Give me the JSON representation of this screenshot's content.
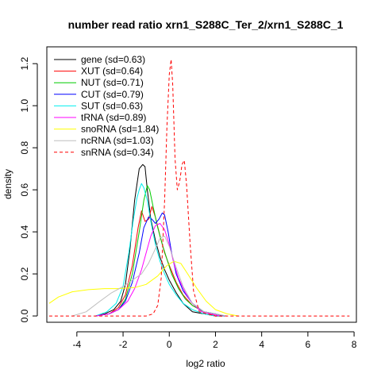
{
  "chart_data": {
    "type": "line",
    "title": "number read ratio xrn1_S288C_Ter_2/xrn1_S288C_1",
    "xlabel": "log2 ratio",
    "ylabel": "density",
    "xlim": [
      -5.3,
      8.1
    ],
    "ylim": [
      -0.03,
      1.28
    ],
    "x_ticks": [
      -4,
      -2,
      0,
      2,
      4,
      6,
      8
    ],
    "x_tick_labels": [
      "-4",
      "-2",
      "0",
      "2",
      "4",
      "6",
      "8"
    ],
    "y_ticks": [
      0.0,
      0.2,
      0.4,
      0.6,
      0.8,
      1.0,
      1.2
    ],
    "y_tick_labels": [
      "0.0",
      "0.2",
      "0.4",
      "0.6",
      "0.8",
      "1.0",
      "1.2"
    ],
    "grid": false,
    "legend_position": "top-left",
    "series": [
      {
        "name": "gene (sd=0.63)",
        "color": "#000000",
        "dashed": false,
        "x": [
          -3.2,
          -2.8,
          -2.4,
          -2.1,
          -1.9,
          -1.7,
          -1.5,
          -1.3,
          -1.15,
          -1.05,
          -0.95,
          -0.8,
          -0.6,
          -0.4,
          -0.2,
          0.0,
          0.3,
          0.6,
          1.0,
          1.5,
          2.0,
          2.3
        ],
        "y": [
          0.0,
          0.01,
          0.03,
          0.07,
          0.15,
          0.32,
          0.55,
          0.7,
          0.72,
          0.71,
          0.6,
          0.46,
          0.36,
          0.28,
          0.22,
          0.17,
          0.11,
          0.06,
          0.02,
          0.01,
          0.0,
          0.0
        ]
      },
      {
        "name": "XUT (sd=0.64)",
        "color": "#ff0000",
        "dashed": false,
        "x": [
          -3.2,
          -2.6,
          -2.2,
          -1.9,
          -1.6,
          -1.35,
          -1.2,
          -1.05,
          -0.9,
          -0.75,
          -0.6,
          -0.4,
          -0.2,
          0.0,
          0.3,
          0.6,
          1.0,
          1.5,
          2.0,
          2.3
        ],
        "y": [
          0.0,
          0.01,
          0.04,
          0.1,
          0.24,
          0.42,
          0.5,
          0.45,
          0.46,
          0.52,
          0.47,
          0.38,
          0.3,
          0.24,
          0.16,
          0.1,
          0.05,
          0.02,
          0.0,
          0.0
        ]
      },
      {
        "name": "NUT (sd=0.71)",
        "color": "#00cc00",
        "dashed": false,
        "x": [
          -3.2,
          -2.6,
          -2.2,
          -1.9,
          -1.6,
          -1.3,
          -1.1,
          -0.95,
          -0.85,
          -0.7,
          -0.5,
          -0.3,
          -0.1,
          0.1,
          0.4,
          0.7,
          1.0,
          1.5,
          2.0,
          2.4
        ],
        "y": [
          0.0,
          0.01,
          0.03,
          0.08,
          0.2,
          0.4,
          0.55,
          0.62,
          0.6,
          0.52,
          0.42,
          0.34,
          0.27,
          0.2,
          0.13,
          0.08,
          0.05,
          0.02,
          0.01,
          0.0
        ]
      },
      {
        "name": "CUT (sd=0.79)",
        "color": "#0000ff",
        "dashed": false,
        "x": [
          -3.2,
          -2.6,
          -2.2,
          -1.9,
          -1.6,
          -1.3,
          -1.1,
          -0.9,
          -0.75,
          -0.6,
          -0.45,
          -0.3,
          -0.2,
          -0.05,
          0.1,
          0.3,
          0.6,
          1.0,
          1.5,
          2.0,
          2.4
        ],
        "y": [
          0.0,
          0.01,
          0.03,
          0.07,
          0.16,
          0.3,
          0.42,
          0.47,
          0.46,
          0.44,
          0.46,
          0.49,
          0.48,
          0.4,
          0.3,
          0.2,
          0.12,
          0.06,
          0.02,
          0.01,
          0.0
        ]
      },
      {
        "name": "SUT (sd=0.63)",
        "color": "#00eeee",
        "dashed": false,
        "x": [
          -3.2,
          -2.7,
          -2.3,
          -2.0,
          -1.75,
          -1.55,
          -1.4,
          -1.3,
          -1.2,
          -1.1,
          -0.95,
          -0.8,
          -0.6,
          -0.4,
          -0.2,
          0.0,
          0.3,
          0.6,
          1.0,
          1.5,
          2.0,
          2.3
        ],
        "y": [
          0.0,
          0.02,
          0.06,
          0.14,
          0.3,
          0.46,
          0.56,
          0.6,
          0.63,
          0.61,
          0.55,
          0.45,
          0.34,
          0.26,
          0.2,
          0.15,
          0.1,
          0.06,
          0.03,
          0.01,
          0.0,
          0.0
        ]
      },
      {
        "name": "tRNA (sd=0.89)",
        "color": "#ff00ff",
        "dashed": false,
        "x": [
          -3.2,
          -2.6,
          -2.2,
          -1.8,
          -1.5,
          -1.2,
          -1.0,
          -0.8,
          -0.6,
          -0.4,
          -0.2,
          0.0,
          0.2,
          0.4,
          0.7,
          1.0,
          1.4,
          1.8,
          2.2
        ],
        "y": [
          0.0,
          0.01,
          0.03,
          0.07,
          0.13,
          0.22,
          0.3,
          0.38,
          0.43,
          0.44,
          0.41,
          0.34,
          0.25,
          0.18,
          0.11,
          0.06,
          0.02,
          0.01,
          0.0
        ]
      },
      {
        "name": "snoRNA (sd=1.84)",
        "color": "#ffff00",
        "dashed": false,
        "x": [
          -5.2,
          -4.8,
          -4.2,
          -3.5,
          -2.8,
          -2.2,
          -1.5,
          -1.0,
          -0.5,
          -0.1,
          0.2,
          0.5,
          0.8,
          1.2,
          1.6,
          2.0,
          2.5,
          3.0
        ],
        "y": [
          0.06,
          0.09,
          0.115,
          0.125,
          0.13,
          0.13,
          0.135,
          0.15,
          0.19,
          0.24,
          0.26,
          0.25,
          0.2,
          0.13,
          0.07,
          0.03,
          0.01,
          0.0
        ]
      },
      {
        "name": "ncRNA (sd=1.03)",
        "color": "#bebebe",
        "dashed": false,
        "x": [
          -4.2,
          -3.6,
          -3.0,
          -2.5,
          -2.0,
          -1.6,
          -1.2,
          -0.9,
          -0.6,
          -0.4,
          -0.2,
          0.0,
          0.3,
          0.6,
          1.0,
          1.5,
          2.0,
          2.5
        ],
        "y": [
          0.0,
          0.02,
          0.07,
          0.11,
          0.14,
          0.17,
          0.2,
          0.25,
          0.32,
          0.37,
          0.38,
          0.33,
          0.23,
          0.14,
          0.06,
          0.02,
          0.01,
          0.0
        ]
      },
      {
        "name": "snRNA (sd=0.34)",
        "color": "#ff0000",
        "dashed": true,
        "x": [
          -5.2,
          -1.0,
          -0.7,
          -0.5,
          -0.35,
          -0.2,
          -0.1,
          0.0,
          0.08,
          0.15,
          0.25,
          0.35,
          0.45,
          0.55,
          0.65,
          0.75,
          0.9,
          1.05,
          1.3,
          2.0,
          4.0,
          7.8
        ],
        "y": [
          0.0,
          0.0,
          0.01,
          0.05,
          0.18,
          0.55,
          0.9,
          1.15,
          1.22,
          1.1,
          0.75,
          0.6,
          0.64,
          0.72,
          0.74,
          0.62,
          0.35,
          0.12,
          0.02,
          0.0,
          0.0,
          0.0
        ]
      }
    ]
  }
}
